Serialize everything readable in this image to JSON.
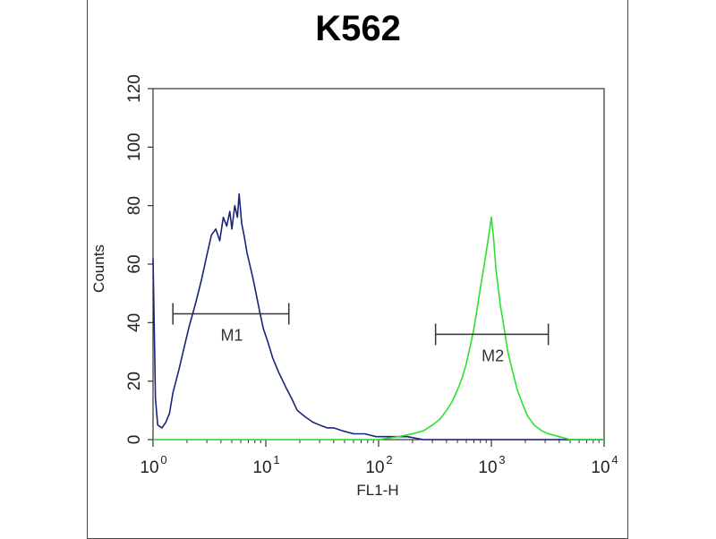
{
  "chart_data": {
    "type": "line",
    "title": "K562",
    "xlabel": "FL1-H",
    "ylabel": "Counts",
    "x_scale": "log",
    "xlim": [
      1,
      10000
    ],
    "ylim": [
      0,
      120
    ],
    "x_ticks": [
      {
        "base": "10",
        "exp": "0",
        "value": 1
      },
      {
        "base": "10",
        "exp": "1",
        "value": 10
      },
      {
        "base": "10",
        "exp": "2",
        "value": 100
      },
      {
        "base": "10",
        "exp": "3",
        "value": 1000
      },
      {
        "base": "10",
        "exp": "4",
        "value": 10000
      }
    ],
    "y_ticks": [
      "0",
      "20",
      "40",
      "60",
      "80",
      "100",
      "120"
    ],
    "grid": false,
    "series": [
      {
        "color": "#1a237e",
        "x": [
          1,
          1.05,
          1.1,
          1.2,
          1.3,
          1.4,
          1.5,
          1.7,
          1.9,
          2.1,
          2.4,
          2.7,
          3.0,
          3.3,
          3.6,
          3.9,
          4.2,
          4.5,
          4.8,
          5.0,
          5.3,
          5.6,
          5.8,
          6.1,
          6.4,
          6.8,
          7.2,
          7.7,
          8.2,
          8.8,
          9.5,
          10.5,
          11.5,
          13,
          15,
          17,
          19,
          22,
          26,
          30,
          35,
          40,
          48,
          60,
          75,
          95,
          130,
          180,
          250,
          350,
          500,
          800,
          1500,
          3000,
          10000
        ],
        "y": [
          62,
          14,
          5,
          4,
          6,
          9,
          16,
          24,
          32,
          39,
          47,
          55,
          63,
          70,
          72,
          68,
          76,
          73,
          78,
          72,
          80,
          76,
          84,
          74,
          70,
          64,
          60,
          55,
          50,
          44,
          38,
          33,
          28,
          23,
          18,
          14,
          10,
          8,
          6,
          5,
          4,
          4,
          3,
          2,
          2,
          1,
          1,
          1,
          0,
          0,
          0,
          0,
          0,
          0,
          0
        ]
      },
      {
        "color": "#2ee02e",
        "x": [
          1,
          10,
          100,
          150,
          200,
          250,
          300,
          350,
          400,
          450,
          500,
          550,
          600,
          650,
          700,
          750,
          800,
          850,
          900,
          950,
          1000,
          1050,
          1100,
          1150,
          1200,
          1300,
          1400,
          1550,
          1700,
          1900,
          2100,
          2400,
          2800,
          3200,
          4000,
          5000,
          7000,
          10000
        ],
        "y": [
          0,
          0,
          0,
          1,
          2,
          3,
          5,
          7,
          10,
          13,
          17,
          21,
          26,
          32,
          38,
          45,
          52,
          58,
          64,
          70,
          76,
          68,
          58,
          52,
          46,
          38,
          30,
          23,
          17,
          12,
          8,
          5,
          3,
          2,
          1,
          0,
          0,
          0
        ]
      }
    ],
    "markers": [
      {
        "label": "M1",
        "x_start": 1.5,
        "x_end": 16,
        "y": 43
      },
      {
        "label": "M2",
        "x_start": 320,
        "x_end": 3200,
        "y": 36
      }
    ]
  }
}
